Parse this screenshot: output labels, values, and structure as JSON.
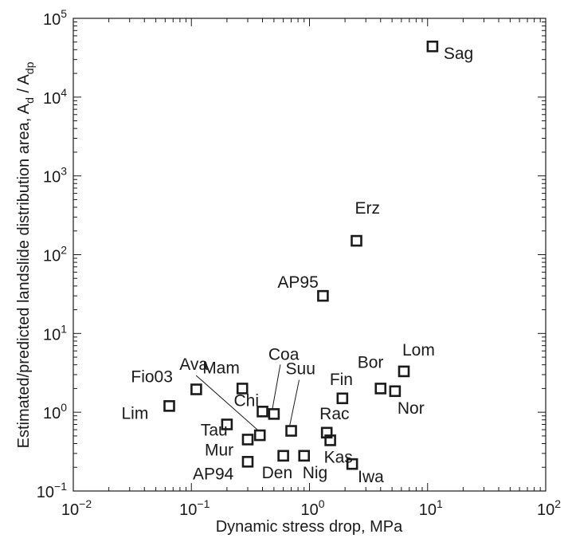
{
  "chart_data": {
    "type": "scatter",
    "xlabel": "Dynamic stress drop, MPa",
    "ylabel": {
      "main": "Estimated/predicted landslide distribution area, A",
      "sub1": "d",
      "sep": " / A",
      "sub2": "dp"
    },
    "x_scale": "log",
    "y_scale": "log",
    "xlim": [
      0.01,
      100
    ],
    "ylim": [
      0.1,
      100000
    ],
    "grid": false,
    "xticks": [
      {
        "value": 0.01,
        "base": "10",
        "exp": "−2"
      },
      {
        "value": 0.1,
        "base": "10",
        "exp": "−1"
      },
      {
        "value": 1,
        "base": "10",
        "exp": "0"
      },
      {
        "value": 10,
        "base": "10",
        "exp": "1"
      },
      {
        "value": 100,
        "base": "10",
        "exp": "2"
      }
    ],
    "yticks": [
      {
        "value": 0.1,
        "base": "10",
        "exp": "−1"
      },
      {
        "value": 1,
        "base": "10",
        "exp": "0"
      },
      {
        "value": 10,
        "base": "10",
        "exp": "1"
      },
      {
        "value": 100,
        "base": "10",
        "exp": "2"
      },
      {
        "value": 1000,
        "base": "10",
        "exp": "3"
      },
      {
        "value": 10000,
        "base": "10",
        "exp": "4"
      },
      {
        "value": 100000,
        "base": "10",
        "exp": "5"
      }
    ],
    "points": [
      {
        "label": "Sag",
        "x": 11,
        "y": 44000
      },
      {
        "label": "Erz",
        "x": 2.5,
        "y": 150
      },
      {
        "label": "AP95",
        "x": 1.3,
        "y": 30
      },
      {
        "label": "Lom",
        "x": 6.3,
        "y": 3.3
      },
      {
        "label": "Bor",
        "x": 4.0,
        "y": 2.0
      },
      {
        "label": "Nor",
        "x": 5.3,
        "y": 1.85
      },
      {
        "label": "Fin",
        "x": 1.9,
        "y": 1.5
      },
      {
        "label": "Fio03",
        "x": 0.11,
        "y": 1.95
      },
      {
        "label": "Lim",
        "x": 0.065,
        "y": 1.2
      },
      {
        "label": "Mam",
        "x": 0.27,
        "y": 2.0
      },
      {
        "label": "Chi",
        "x": 0.4,
        "y": 1.02
      },
      {
        "label": "Coa",
        "x": 0.5,
        "y": 0.95
      },
      {
        "label": "Suu",
        "x": 0.7,
        "y": 0.58
      },
      {
        "label": "Ava",
        "x": 0.38,
        "y": 0.51
      },
      {
        "label": "Tau",
        "x": 0.2,
        "y": 0.7
      },
      {
        "label": "Mur",
        "x": 0.3,
        "y": 0.45
      },
      {
        "label": "AP94",
        "x": 0.3,
        "y": 0.235
      },
      {
        "label": "Rac",
        "x": 1.4,
        "y": 0.55
      },
      {
        "label": "Kas",
        "x": 1.5,
        "y": 0.44
      },
      {
        "label": "Den",
        "x": 0.6,
        "y": 0.28
      },
      {
        "label": "Nig",
        "x": 0.9,
        "y": 0.28
      },
      {
        "label": "Iwa",
        "x": 2.3,
        "y": 0.22
      }
    ]
  }
}
